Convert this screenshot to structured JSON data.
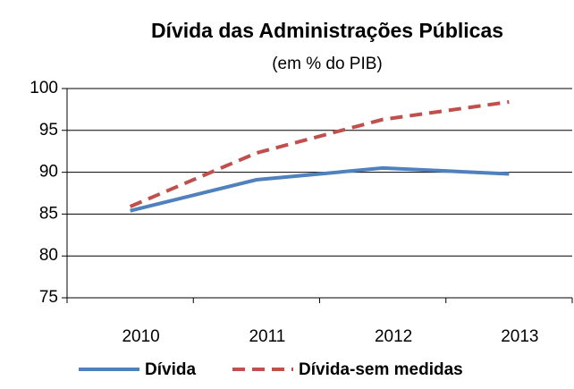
{
  "chart_data": {
    "type": "line",
    "title": "Dívida das Administrações Públicas",
    "subtitle": "(em % do PIB)",
    "categories": [
      "2010",
      "2011",
      "2012",
      "2013"
    ],
    "series": [
      {
        "name": "Dívida",
        "color": "#4f81bd",
        "dash": false,
        "values": [
          85.4,
          89.1,
          90.5,
          89.8
        ]
      },
      {
        "name": "Dívida-sem medidas",
        "color": "#c0504d",
        "dash": true,
        "values": [
          85.9,
          92.3,
          96.3,
          98.4
        ]
      }
    ],
    "ylim": [
      75,
      100
    ],
    "yticks": [
      75,
      80,
      85,
      90,
      95,
      100
    ],
    "grid": true,
    "legend": "bottom"
  }
}
